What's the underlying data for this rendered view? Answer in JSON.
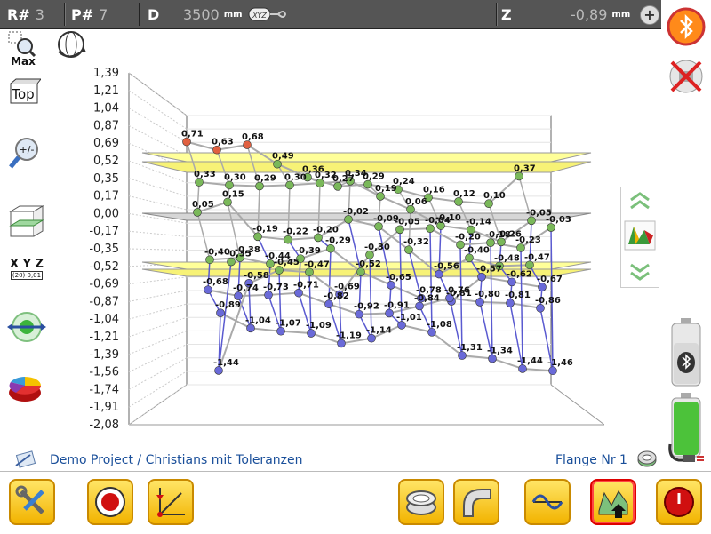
{
  "header": {
    "r_label": "R#",
    "r_value": "3",
    "p_label": "P#",
    "p_value": "7",
    "d_label": "D",
    "d_value": "3500",
    "d_unit": "mm",
    "xyz_badge": "XYZ",
    "z_label": "Z",
    "z_value": "-0,89",
    "z_unit": "mm",
    "plus": "+"
  },
  "left_toolbar": {
    "zoom_max": "Max",
    "top_view": "Top",
    "zoom_pm": "+/-",
    "xyz_label": "X Y Z",
    "xyz_sub": "(20) 0,01"
  },
  "footer": {
    "project": "Demo Project / Christians mit Toleranzen",
    "flange": "Flange Nr 1"
  },
  "colors": {
    "accent": "#f2b300",
    "tolerance_band": "#ffff99",
    "points_low": "#6a6ad8",
    "points_mid": "#7ab85a",
    "points_high": "#e06040"
  },
  "chart_data": {
    "type": "scatter",
    "title": "",
    "xlabel": "",
    "ylabel": "",
    "ylim": [
      -2.08,
      1.39
    ],
    "yticks": [
      "1,39",
      "1,21",
      "1,04",
      "0,87",
      "0,69",
      "0,52",
      "0,35",
      "0,17",
      "0,00",
      "-0,17",
      "-0,35",
      "-0,52",
      "-0,69",
      "-0,87",
      "-1,04",
      "-1,21",
      "-1,39",
      "-1,56",
      "-1,74",
      "-1,91",
      "-2,08"
    ],
    "tolerance_upper": 0.52,
    "tolerance_lower": -0.52,
    "point_labels": [
      "0,71",
      "0,63",
      "0,68",
      "0,49",
      "0,36",
      "0,27",
      "0,29",
      "0,24",
      "0,16",
      "0,12",
      "0,10",
      "0,37",
      "0,33",
      "0,30",
      "0,29",
      "0,30",
      "0,32",
      "0,34",
      "0,19",
      "0,06",
      "-0,10",
      "-0,14",
      "-0,26",
      "-0,05",
      "0,05",
      "0,15",
      "-0,19",
      "-0,22",
      "-0,20",
      "-0,02",
      "-0,09",
      "-0,32",
      "-0,56",
      "-0,40",
      "-0,48",
      "-0,47",
      "-0,40",
      "-0,38",
      "-0,44",
      "-0,39",
      "-0,29",
      "-0,52",
      "-0,65",
      "-0,78",
      "-0,81",
      "-0,57",
      "-0,62",
      "-0,67",
      "-0,68",
      "-0,74",
      "-0,73",
      "-0,71",
      "-0,82",
      "-0,92",
      "-0,91",
      "-0,84",
      "-0,76",
      "-0,80",
      "-0,81",
      "-0,86",
      "-0,89",
      "-1,04",
      "-1,07",
      "-1,09",
      "-1,19",
      "-1,14",
      "-1,01",
      "-1,08",
      "-1,31",
      "-1,34",
      "-1,44",
      "-1,46",
      "-1,44",
      "-0,58",
      "-0,45",
      "-0,47",
      "-0,69",
      "-0,30",
      "-0,05",
      "-0,04",
      "-0,20",
      "-0,18",
      "-0,23",
      "-0,03",
      "-0,35"
    ]
  }
}
